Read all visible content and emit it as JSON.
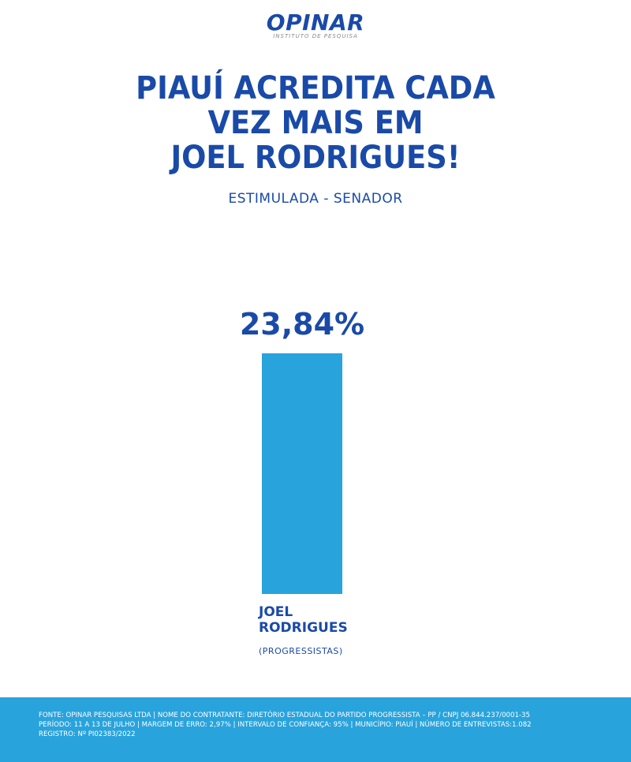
{
  "logo": {
    "name": "OPINAR",
    "tagline": "INSTITUTO DE PESQUISA"
  },
  "headline": {
    "line1": "PIAUÍ ACREDITA CADA",
    "line2": "VEZ MAIS EM",
    "line3": "JOEL RODRIGUES!"
  },
  "subtitle": "ESTIMULADA - SENADOR",
  "chart_data": {
    "type": "bar",
    "categories": [
      "JOEL RODRIGUES"
    ],
    "values": [
      23.84
    ],
    "data_labels": [
      "23,84%"
    ],
    "category_name_lines": [
      [
        "JOEL",
        "RODRIGUES"
      ]
    ],
    "category_party": [
      "(PROGRESSISTAS)"
    ],
    "ylim": [
      0,
      25
    ],
    "grid": false,
    "bar_color": "#29a3dc",
    "text_color": "#1a4aa8"
  },
  "footer": {
    "line1": "FONTE: OPINAR PESQUISAS LTDA | NOME DO CONTRATANTE: DIRETÓRIO ESTADUAL DO PARTIDO PROGRESSISTA – PP / CNPJ 06.844.237/0001-35",
    "line2": "PERÍODO: 11 A 13 DE JULHO | MARGEM DE ERRO: 2,97% | INTERVALO DE CONFIANÇA: 95% | MUNICÍPIO: PIAUÍ | NÚMERO DE ENTREVISTAS:1.082",
    "line3": "REGISTRO: Nº PI02383/2022"
  },
  "colors": {
    "primary": "#1a4aa8",
    "accent": "#29a3dc",
    "background": "#ffffff"
  }
}
